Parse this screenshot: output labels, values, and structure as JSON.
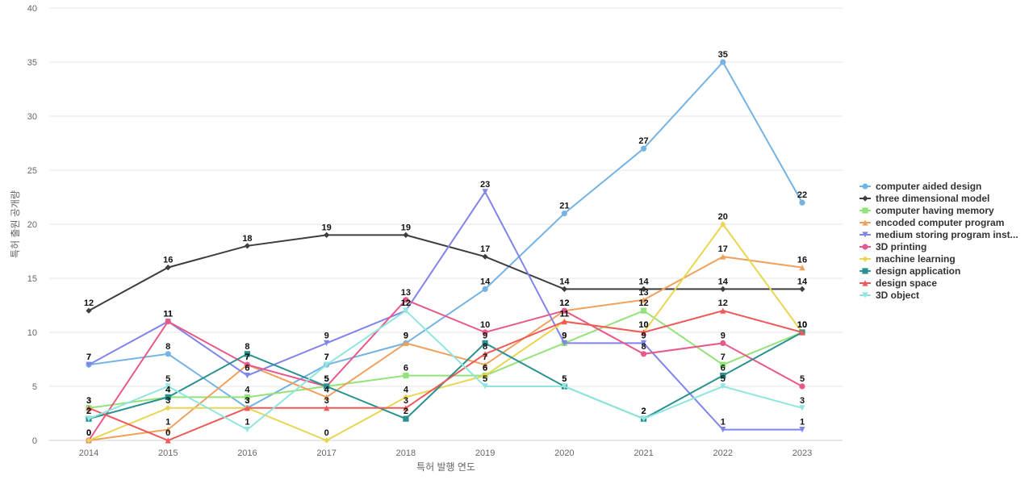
{
  "chart_data": {
    "type": "line",
    "title": "",
    "xlabel": "특허 발행 연도",
    "ylabel": "특허 출원 공개량",
    "ylim": [
      0,
      40
    ],
    "yticks": [
      0,
      5,
      10,
      15,
      20,
      25,
      30,
      35,
      40
    ],
    "grid": true,
    "legend_position": "right",
    "categories": [
      "2014",
      "2015",
      "2016",
      "2017",
      "2018",
      "2019",
      "2020",
      "2021",
      "2022",
      "2023"
    ],
    "series": [
      {
        "name": "computer aided design",
        "color": "#74b3e3",
        "marker": "circle",
        "values": [
          7,
          8,
          3,
          7,
          9,
          14,
          21,
          27,
          35,
          22
        ]
      },
      {
        "name": "three dimensional model",
        "color": "#3d3d3d",
        "marker": "diamond",
        "values": [
          12,
          16,
          18,
          19,
          19,
          17,
          14,
          14,
          14,
          14
        ]
      },
      {
        "name": "computer having memory",
        "color": "#93e27a",
        "marker": "square",
        "values": [
          3,
          4,
          4,
          5,
          6,
          6,
          9,
          12,
          7,
          10
        ]
      },
      {
        "name": "encoded computer program",
        "color": "#f0a15b",
        "marker": "triangle",
        "values": [
          0,
          1,
          7,
          4,
          9,
          7,
          12,
          13,
          17,
          16
        ]
      },
      {
        "name": "medium storing program inst...",
        "color": "#8085e9",
        "marker": "triangle-down",
        "values": [
          7,
          11,
          6,
          9,
          12,
          23,
          9,
          9,
          1,
          1
        ]
      },
      {
        "name": "3D printing",
        "color": "#e8588a",
        "marker": "circle",
        "values": [
          0,
          11,
          7,
          5,
          13,
          10,
          12,
          8,
          9,
          5
        ]
      },
      {
        "name": "machine learning",
        "color": "#e8d653",
        "marker": "diamond",
        "values": [
          0,
          3,
          3,
          0,
          4,
          6,
          11,
          10,
          20,
          10
        ]
      },
      {
        "name": "design application",
        "color": "#2a9090",
        "marker": "square",
        "values": [
          2,
          4,
          8,
          5,
          2,
          9,
          5,
          2,
          6,
          10
        ]
      },
      {
        "name": "design space",
        "color": "#ee5a5a",
        "marker": "triangle",
        "values": [
          3,
          0,
          3,
          3,
          3,
          8,
          11,
          10,
          12,
          10
        ]
      },
      {
        "name": "3D object",
        "color": "#90e6df",
        "marker": "triangle-down",
        "values": [
          2,
          5,
          1,
          7,
          12,
          5,
          5,
          2,
          5,
          3
        ]
      }
    ]
  }
}
